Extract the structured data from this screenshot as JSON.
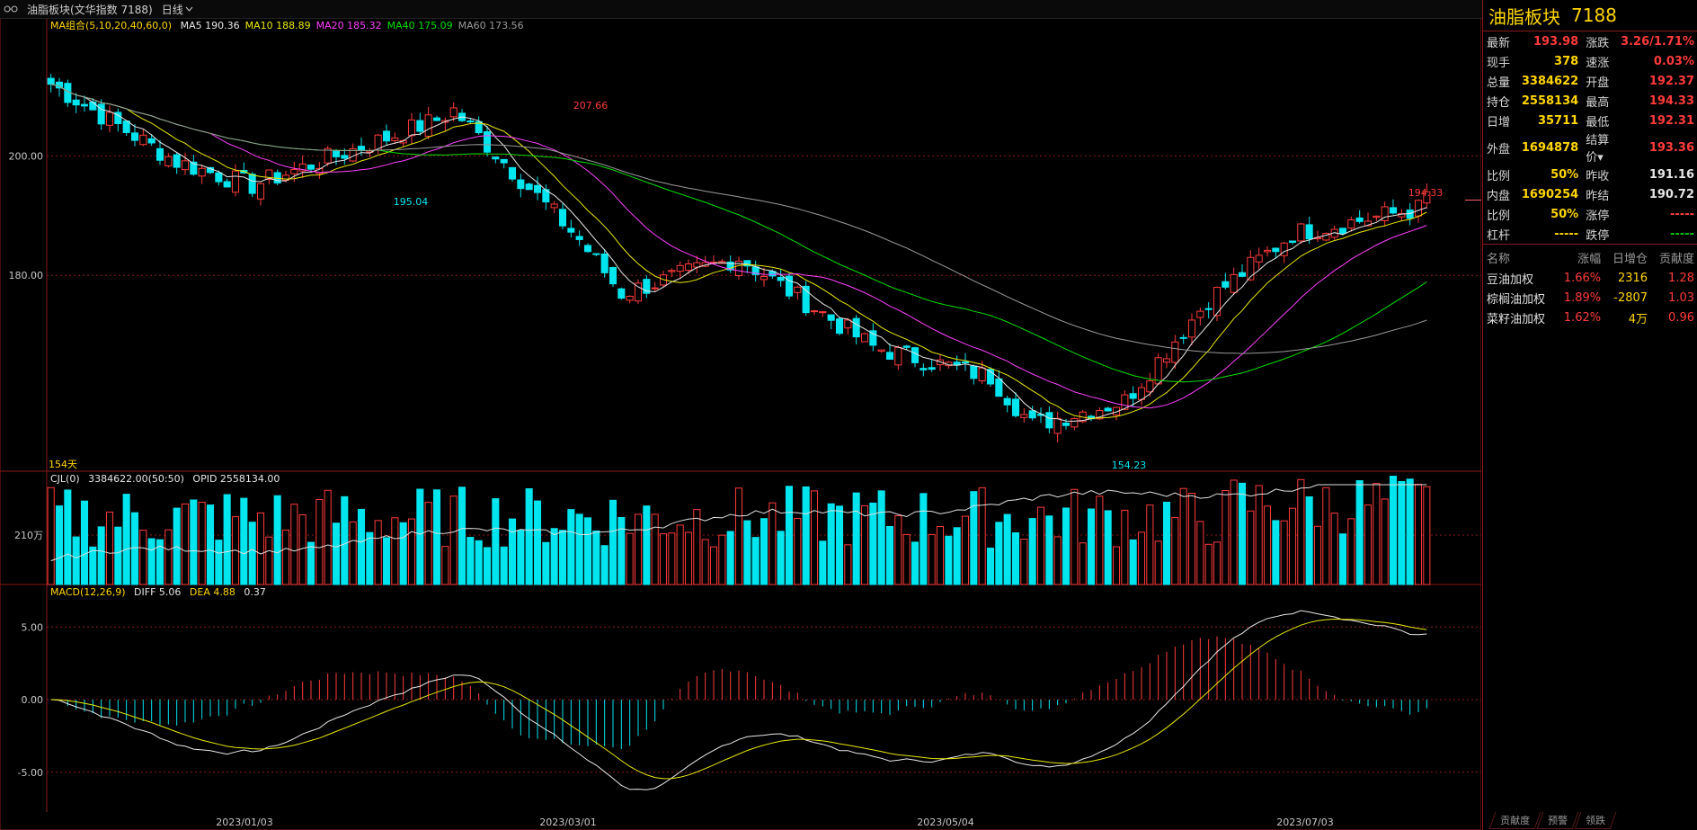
{
  "topbar": {
    "title": "油脂板块(文华指数 7188)",
    "period": "日线"
  },
  "legends": {
    "ma": {
      "name": "MA组合(5,10,20,40,60,0)",
      "items": [
        {
          "label": "MA5 190.36",
          "color": "#e8e8e8"
        },
        {
          "label": "MA10 188.89",
          "color": "#e8e800"
        },
        {
          "label": "MA20 185.32",
          "color": "#ff40ff"
        },
        {
          "label": "MA40 175.09",
          "color": "#00e000"
        },
        {
          "label": "MA60 173.56",
          "color": "#9a9a9a"
        }
      ]
    },
    "vol": {
      "name": "CJL(0)",
      "value": "3384622.00(50:50)",
      "opid": "OPID 2558134.00"
    },
    "macd": {
      "name": "MACD(12,26,9)",
      "diff": "DIFF 5.06",
      "dea": "DEA 4.88",
      "macd": "0.37"
    }
  },
  "annotations": {
    "high1": "207.66",
    "low1": "195.04",
    "low2": "154.23",
    "last_high": "194.33",
    "days": "154天"
  },
  "y_labels": {
    "main": [
      "200.00",
      "180.00"
    ],
    "vol": [
      "210万"
    ],
    "macd": [
      "5.00",
      "0.00",
      "-5.00"
    ]
  },
  "x_labels": [
    "2023/01/03",
    "2023/03/01",
    "2023/05/04",
    "2023/07/03"
  ],
  "quote": {
    "title": "油脂板块",
    "code": "7188",
    "rows": [
      [
        {
          "k": "最新",
          "v": "193.98",
          "c": "red"
        },
        {
          "k": "涨跌",
          "v": "3.26/1.71%",
          "c": "red"
        }
      ],
      [
        {
          "k": "现手",
          "v": "378",
          "c": "yel"
        },
        {
          "k": "速涨",
          "v": "0.03%",
          "c": "red"
        }
      ],
      [
        {
          "k": "总量",
          "v": "3384622",
          "c": "yel"
        },
        {
          "k": "开盘",
          "v": "192.37",
          "c": "red"
        }
      ],
      [
        {
          "k": "持仓",
          "v": "2558134",
          "c": "yel"
        },
        {
          "k": "最高",
          "v": "194.33",
          "c": "red"
        }
      ],
      [
        {
          "k": "日增",
          "v": "35711",
          "c": "yel"
        },
        {
          "k": "最低",
          "v": "192.31",
          "c": "red"
        }
      ],
      [
        {
          "k": "外盘",
          "v": "1694878",
          "c": "yel"
        },
        {
          "k": "结算价▾",
          "v": "193.36",
          "c": "red"
        }
      ],
      [
        {
          "k": "比例",
          "v": "50%",
          "c": "yel"
        },
        {
          "k": "昨收",
          "v": "191.16",
          "c": "wht"
        }
      ],
      [
        {
          "k": "内盘",
          "v": "1690254",
          "c": "yel"
        },
        {
          "k": "昨结",
          "v": "190.72",
          "c": "wht"
        }
      ],
      [
        {
          "k": "比例",
          "v": "50%",
          "c": "yel"
        },
        {
          "k": "涨停",
          "v": "-----",
          "c": "red"
        }
      ],
      [
        {
          "k": "杠杆",
          "v": "-----",
          "c": "yel"
        },
        {
          "k": "跌停",
          "v": "-----",
          "c": "grn"
        }
      ]
    ]
  },
  "components": {
    "headers": [
      "名称",
      "涨幅",
      "日增仓",
      "贡献度"
    ],
    "rows": [
      [
        "豆油加权",
        "1.66%",
        "2316",
        "1.28"
      ],
      [
        "棕榈油加权",
        "1.89%",
        "-2807",
        "1.03"
      ],
      [
        "菜籽油加权",
        "1.62%",
        "4万",
        "0.96"
      ]
    ]
  },
  "tabs": [
    "贡献度",
    "预警",
    "领跌"
  ],
  "colors": {
    "up": "#ff3b3b",
    "down": "#00e5ee",
    "grid": "#8b1a1a"
  },
  "chart_data": {
    "type": "candlestick",
    "ylim_main": [
      148,
      222
    ],
    "ylim_macd": [
      -6.5,
      7
    ],
    "x_dates": [
      "2023/01/03",
      "2023/03/01",
      "2023/05/04",
      "2023/07/03"
    ],
    "ohlc_keypoints": [
      {
        "day": 0,
        "close": 212
      },
      {
        "day": 15,
        "close": 199
      },
      {
        "day": 24,
        "close": 195.04
      },
      {
        "day": 46,
        "close": 206
      },
      {
        "day": 48,
        "close": 207.66
      },
      {
        "day": 63,
        "close": 186
      },
      {
        "day": 68,
        "close": 177
      },
      {
        "day": 82,
        "close": 183
      },
      {
        "day": 98,
        "close": 168
      },
      {
        "day": 112,
        "close": 163
      },
      {
        "day": 117,
        "close": 155
      },
      {
        "day": 128,
        "close": 159
      },
      {
        "day": 138,
        "close": 176
      },
      {
        "day": 148,
        "close": 187
      },
      {
        "day": 163,
        "close": 191.16
      },
      {
        "day": 164,
        "close": 193.98
      }
    ],
    "volume_level": "210万",
    "macd_diff_last": 5.06,
    "macd_dea_last": 4.88,
    "macd_hist_last": 0.37
  }
}
